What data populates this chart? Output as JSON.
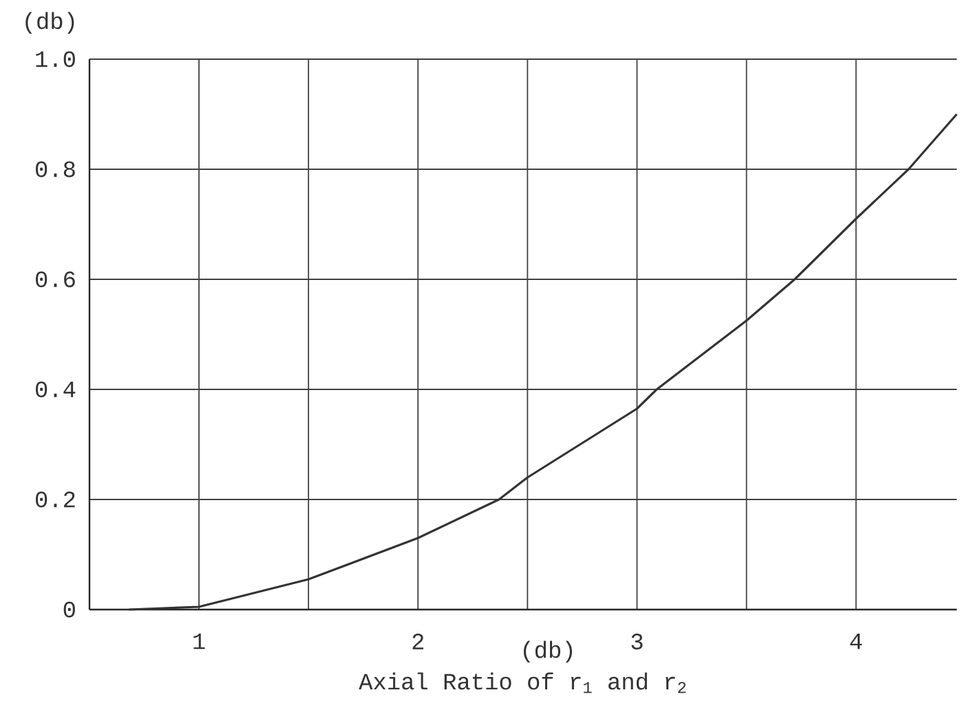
{
  "chart_data": {
    "type": "line",
    "xlabel": "Axial Ratio of r$_{1}$ and r$_{2}$",
    "ylabel": "(db)",
    "annotations": [
      "(db)"
    ],
    "x": [
      0.68,
      1,
      1.5,
      2,
      2.37,
      2.5,
      3,
      3.09,
      3.5,
      3.72,
      4,
      4.24,
      4.46
    ],
    "series": [
      {
        "color": "#333333",
        "values": [
          0,
          0.005,
          0.055,
          0.13,
          0.2,
          0.24,
          0.365,
          0.4,
          0.525,
          0.6,
          0.71,
          0.8,
          0.9
        ]
      }
    ],
    "xlim": [
      0.5,
      4.46
    ],
    "ylim": [
      0,
      1
    ],
    "xticks": [
      1,
      {
        "value": 1.5,
        "label": null
      },
      2,
      {
        "value": 2.5,
        "label": null
      },
      3,
      {
        "value": 3.5,
        "label": null
      },
      4
    ],
    "yticks": [
      0,
      0.2,
      0.4,
      0.6,
      0.8,
      {
        "value": 1,
        "label": "1.0"
      }
    ],
    "grid": true
  }
}
